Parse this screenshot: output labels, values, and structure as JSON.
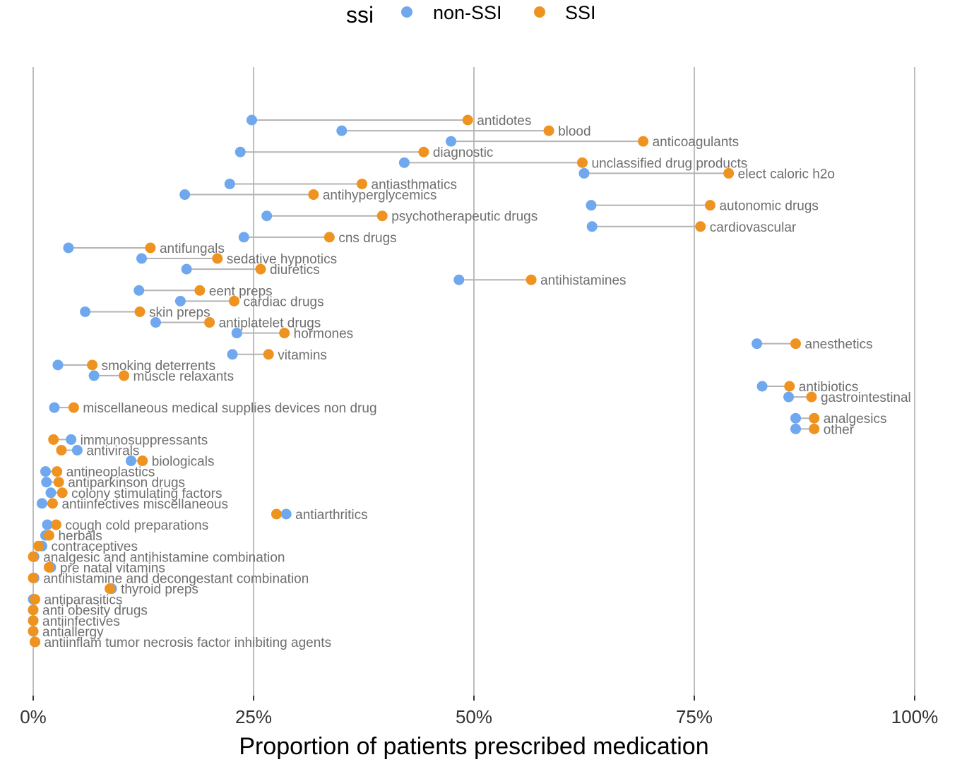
{
  "chart_data": {
    "type": "dumbbell",
    "title": "",
    "xlabel": "Proportion of patients prescribed medication",
    "ylabel": "",
    "xlim": [
      0,
      100
    ],
    "x_ticks": [
      0,
      25,
      50,
      75,
      100
    ],
    "x_tick_labels": [
      "0%",
      "25%",
      "50%",
      "75%",
      "100%"
    ],
    "grid": "vertical major gridlines",
    "legend": {
      "title": "ssi",
      "placement": "top",
      "entries": [
        {
          "name": "non-SSI",
          "color": "#6fa8ee"
        },
        {
          "name": "SSI",
          "color": "#ef9320"
        }
      ]
    },
    "series_names": [
      "non-SSI",
      "SSI"
    ],
    "rows": [
      {
        "category": "antidotes",
        "non_ssi": 24.8,
        "ssi": 49.3
      },
      {
        "category": "blood",
        "non_ssi": 35.0,
        "ssi": 58.5
      },
      {
        "category": "anticoagulants",
        "non_ssi": 47.4,
        "ssi": 69.2
      },
      {
        "category": "diagnostic",
        "non_ssi": 23.5,
        "ssi": 44.3
      },
      {
        "category": "unclassified drug products",
        "non_ssi": 42.1,
        "ssi": 62.3
      },
      {
        "category": "elect caloric h2o",
        "non_ssi": 62.5,
        "ssi": 78.9
      },
      {
        "category": "antiasthmatics",
        "non_ssi": 22.3,
        "ssi": 37.3
      },
      {
        "category": "antihyperglycemics",
        "non_ssi": 17.2,
        "ssi": 31.8
      },
      {
        "category": "autonomic drugs",
        "non_ssi": 63.3,
        "ssi": 76.8
      },
      {
        "category": "psychotherapeutic drugs",
        "non_ssi": 26.5,
        "ssi": 39.6
      },
      {
        "category": "cardiovascular",
        "non_ssi": 63.4,
        "ssi": 75.7
      },
      {
        "category": "cns drugs",
        "non_ssi": 23.9,
        "ssi": 33.6
      },
      {
        "category": "antifungals",
        "non_ssi": 4.0,
        "ssi": 13.3
      },
      {
        "category": "sedative hypnotics",
        "non_ssi": 12.3,
        "ssi": 20.9
      },
      {
        "category": "diuretics",
        "non_ssi": 17.4,
        "ssi": 25.8
      },
      {
        "category": "antihistamines",
        "non_ssi": 48.3,
        "ssi": 56.5
      },
      {
        "category": "eent preps",
        "non_ssi": 12.0,
        "ssi": 18.9
      },
      {
        "category": "cardiac drugs",
        "non_ssi": 16.7,
        "ssi": 22.8
      },
      {
        "category": "skin preps",
        "non_ssi": 5.9,
        "ssi": 12.1
      },
      {
        "category": "antiplatelet drugs",
        "non_ssi": 13.9,
        "ssi": 20.0
      },
      {
        "category": "hormones",
        "non_ssi": 23.1,
        "ssi": 28.5
      },
      {
        "category": "anesthetics",
        "non_ssi": 82.1,
        "ssi": 86.5
      },
      {
        "category": "vitamins",
        "non_ssi": 22.6,
        "ssi": 26.7
      },
      {
        "category": "smoking deterrents",
        "non_ssi": 2.8,
        "ssi": 6.7
      },
      {
        "category": "muscle relaxants",
        "non_ssi": 6.9,
        "ssi": 10.3
      },
      {
        "category": "antibiotics",
        "non_ssi": 82.7,
        "ssi": 85.8
      },
      {
        "category": "gastrointestinal",
        "non_ssi": 85.7,
        "ssi": 88.3
      },
      {
        "category": "miscellaneous medical supplies devices non drug",
        "non_ssi": 2.4,
        "ssi": 4.6
      },
      {
        "category": "analgesics",
        "non_ssi": 86.5,
        "ssi": 88.6
      },
      {
        "category": "other",
        "non_ssi": 86.5,
        "ssi": 88.6
      },
      {
        "category": "immunosuppressants",
        "non_ssi": 4.3,
        "ssi": 2.3
      },
      {
        "category": "antivirals",
        "non_ssi": 5.0,
        "ssi": 3.2
      },
      {
        "category": "biologicals",
        "non_ssi": 11.1,
        "ssi": 12.4
      },
      {
        "category": "antineoplastics",
        "non_ssi": 1.4,
        "ssi": 2.7
      },
      {
        "category": "antiparkinson drugs",
        "non_ssi": 1.5,
        "ssi": 2.9
      },
      {
        "category": "colony stimulating factors",
        "non_ssi": 2.0,
        "ssi": 3.3
      },
      {
        "category": "antiinfectives miscellaneous",
        "non_ssi": 1.0,
        "ssi": 2.2
      },
      {
        "category": "antiarthritics",
        "non_ssi": 28.7,
        "ssi": 27.6
      },
      {
        "category": "cough cold preparations",
        "non_ssi": 1.6,
        "ssi": 2.6
      },
      {
        "category": "herbals",
        "non_ssi": 1.4,
        "ssi": 1.8
      },
      {
        "category": "contraceptives",
        "non_ssi": 1.0,
        "ssi": 0.6
      },
      {
        "category": "analgesic and antihistamine combination",
        "non_ssi": 0.1,
        "ssi": 0.0
      },
      {
        "category": "pre natal vitamins",
        "non_ssi": 2.0,
        "ssi": 1.8
      },
      {
        "category": "antihistamine and decongestant combination",
        "non_ssi": 0.1,
        "ssi": 0.0
      },
      {
        "category": "thyroid preps",
        "non_ssi": 8.9,
        "ssi": 8.7
      },
      {
        "category": "antiparasitics",
        "non_ssi": 0.0,
        "ssi": 0.2
      },
      {
        "category": "anti obesity drugs",
        "non_ssi": 0.0,
        "ssi": 0.0
      },
      {
        "category": "antiinfectives",
        "non_ssi": 0.0,
        "ssi": 0.0
      },
      {
        "category": "antiallergy",
        "non_ssi": 0.0,
        "ssi": 0.0
      },
      {
        "category": "antiinflam tumor necrosis factor inhibiting agents",
        "non_ssi": 0.2,
        "ssi": 0.2
      }
    ]
  }
}
